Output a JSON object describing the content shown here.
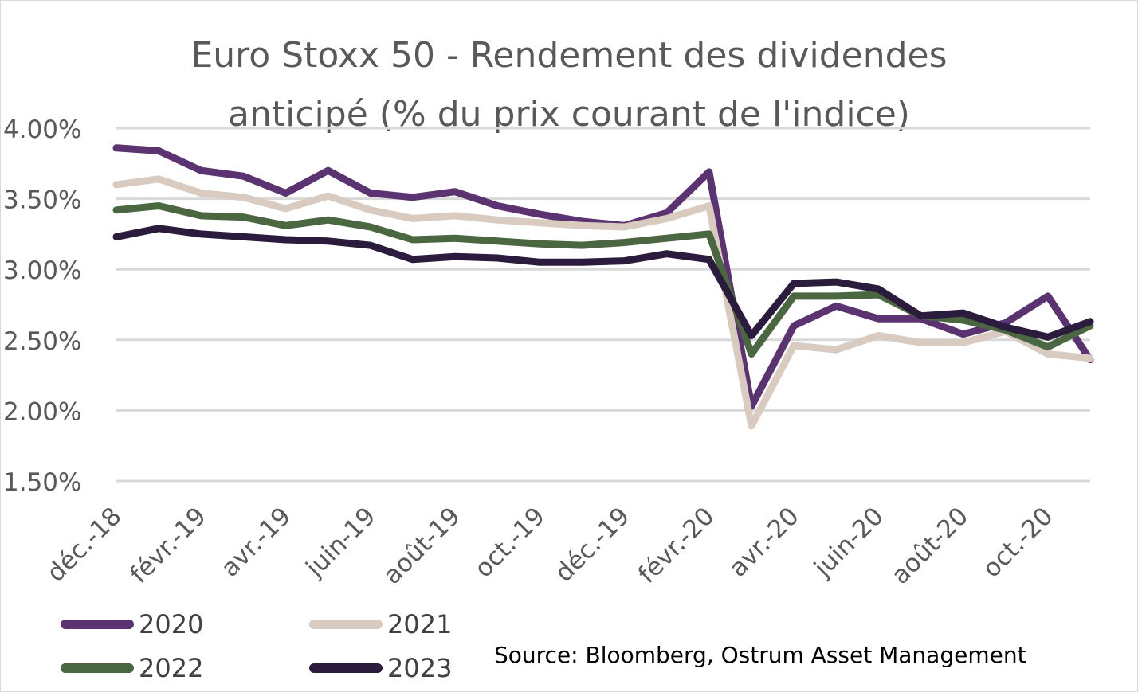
{
  "chart_data": {
    "type": "line",
    "title_lines": [
      "Euro Stoxx 50 - Rendement des dividendes",
      "anticipé (% du prix courant de l'indice)"
    ],
    "ylim": [
      1.5,
      4.0
    ],
    "y_ticks": [
      4.0,
      3.5,
      3.0,
      2.5,
      2.0,
      1.5
    ],
    "y_tick_labels": [
      "4.00%",
      "3.50%",
      "3.00%",
      "2.50%",
      "2.00%",
      "1.50%"
    ],
    "grid": true,
    "x_tick_labels": [
      "déc.-18",
      "févr.-19",
      "avr.-19",
      "juin-19",
      "août-19",
      "oct.-19",
      "déc.-19",
      "févr.-20",
      "avr.-20",
      "juin-20",
      "août-20",
      "oct.-20"
    ],
    "x": [
      "déc.-18",
      "janv.-19",
      "févr.-19",
      "mars-19",
      "avr.-19",
      "mai-19",
      "juin-19",
      "juil.-19",
      "août-19",
      "sept.-19",
      "oct.-19",
      "nov.-19",
      "déc.-19",
      "janv.-20",
      "févr.-20",
      "mars-20",
      "avr.-20",
      "mai-20",
      "juin-20",
      "juil.-20",
      "août-20",
      "sept.-20",
      "oct.-20",
      "nov.-20"
    ],
    "series": [
      {
        "name": "2020",
        "color": "#5b3371",
        "values": [
          3.86,
          3.84,
          3.7,
          3.66,
          3.54,
          3.7,
          3.54,
          3.51,
          3.55,
          3.45,
          3.39,
          3.34,
          3.31,
          3.4,
          3.69,
          2.03,
          2.6,
          2.74,
          2.65,
          2.65,
          2.54,
          2.62,
          2.81,
          2.36
        ]
      },
      {
        "name": "2021",
        "color": "#d9cbc0",
        "values": [
          3.6,
          3.64,
          3.54,
          3.51,
          3.43,
          3.52,
          3.42,
          3.36,
          3.38,
          3.35,
          3.33,
          3.31,
          3.3,
          3.36,
          3.45,
          1.89,
          2.46,
          2.43,
          2.53,
          2.48,
          2.48,
          2.56,
          2.4,
          2.37
        ]
      },
      {
        "name": "2022",
        "color": "#4a6741",
        "values": [
          3.42,
          3.45,
          3.38,
          3.37,
          3.31,
          3.35,
          3.3,
          3.21,
          3.22,
          3.2,
          3.18,
          3.17,
          3.19,
          3.22,
          3.25,
          2.4,
          2.81,
          2.81,
          2.82,
          2.67,
          2.64,
          2.57,
          2.45,
          2.6
        ]
      },
      {
        "name": "2023",
        "color": "#2b1b3d",
        "values": [
          3.23,
          3.29,
          3.25,
          3.23,
          3.21,
          3.2,
          3.17,
          3.07,
          3.09,
          3.08,
          3.05,
          3.05,
          3.06,
          3.11,
          3.07,
          2.53,
          2.9,
          2.91,
          2.86,
          2.67,
          2.69,
          2.59,
          2.52,
          2.63
        ]
      }
    ],
    "legend_position": "bottom-left",
    "source": "Source: Bloomberg, Ostrum Asset Management"
  }
}
